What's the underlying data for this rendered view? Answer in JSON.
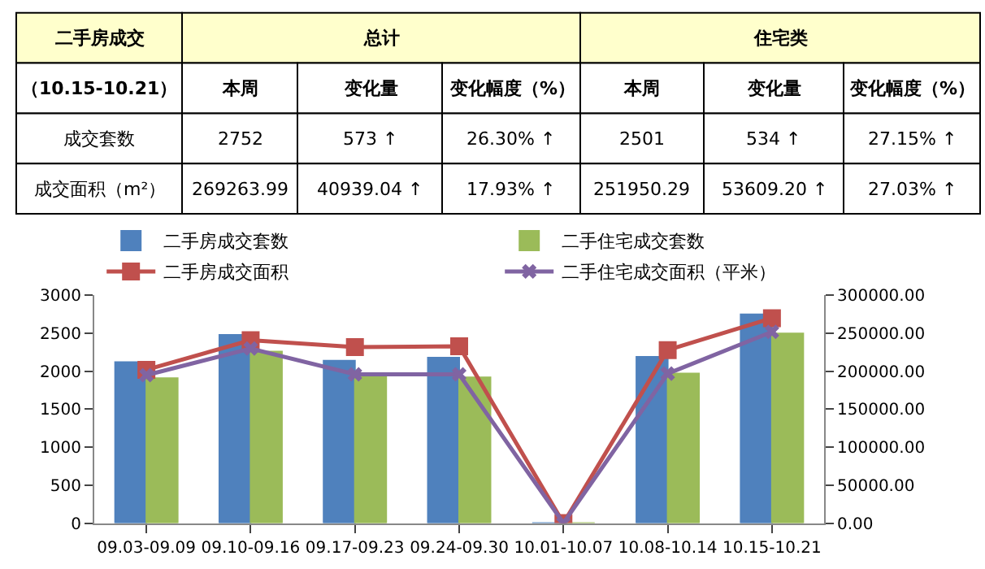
{
  "chart_data": [
    {
      "type": "other",
      "cells": [
        [
          "二手房成交",
          "总计",
          null,
          null,
          "住宅类",
          null,
          null
        ],
        [
          "（10.15-10.21）",
          "本周",
          "变化量",
          "变化幅度（%）",
          "本周",
          "变化量",
          "变化幅度（%）"
        ],
        [
          "成交套数",
          "2752",
          "573 ↑",
          "26.30% ↑",
          "2501",
          "534 ↑",
          "27.15% ↑"
        ],
        [
          "成交面积（m²）",
          "269263.99",
          "40939.04 ↑",
          "17.93% ↑",
          "251950.29",
          "53609.20 ↑",
          "27.03% ↑"
        ]
      ]
    },
    {
      "type": "bar",
      "legend": "top",
      "categories": [
        "09.03-09.09",
        "09.10-09.16",
        "09.17-09.23",
        "09.24-09.30",
        "10.01-10.07",
        "10.08-10.14",
        "10.15-10.21"
      ],
      "ylim": [
        0,
        3000
      ],
      "yticks": [
        0,
        500,
        1000,
        1500,
        2000,
        2500,
        3000
      ],
      "y2lim": [
        0,
        300000
      ],
      "y2ticks": [
        {
          "value": 0,
          "label": "0.00"
        },
        {
          "value": 50000,
          "label": "50000.00"
        },
        {
          "value": 100000,
          "label": "100000.00"
        },
        {
          "value": 150000,
          "label": "150000.00"
        },
        {
          "value": 200000,
          "label": "200000.00"
        },
        {
          "value": 250000,
          "label": "250000.00"
        },
        {
          "value": 300000,
          "label": "300000.00"
        }
      ],
      "series": [
        {
          "name": "二手房成交套数",
          "type": "bar",
          "color": "#4f81bd",
          "values": [
            2120,
            2480,
            2140,
            2180,
            0,
            2190,
            2750
          ]
        },
        {
          "name": "二手住宅成交套数",
          "type": "bar",
          "color": "#9bbb59",
          "values": [
            1910,
            2260,
            1960,
            1920,
            0,
            1970,
            2500
          ]
        },
        {
          "name": "二手房成交面积",
          "type": "line",
          "axis": "y2",
          "marker": "square",
          "color": "#c0504d",
          "values": [
            202000,
            241000,
            232000,
            233000,
            0,
            228000,
            270000
          ]
        },
        {
          "name": "二手住宅成交面积（平米）",
          "type": "line",
          "axis": "y2",
          "marker": "cross",
          "color": "#8064a2",
          "values": [
            195000,
            230000,
            196000,
            196000,
            0,
            197000,
            252000
          ]
        }
      ]
    }
  ]
}
